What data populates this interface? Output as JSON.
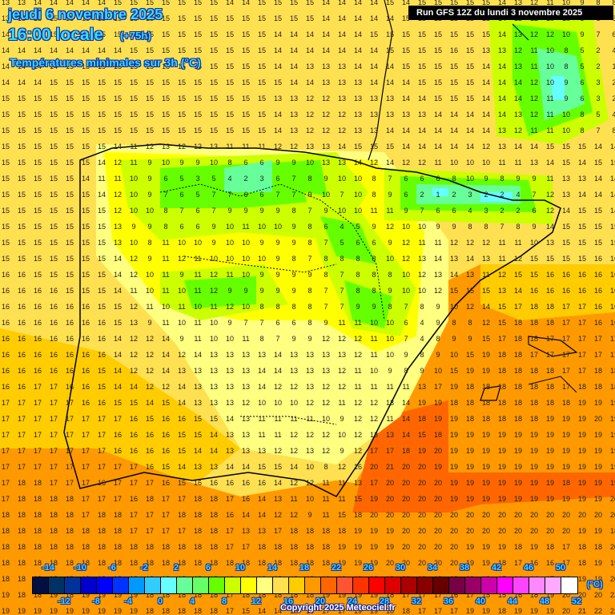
{
  "header": {
    "date": "jeudi 6 novembre 2025",
    "time": "16:00 locale",
    "lead": "(+75h)",
    "variable": "Températures minimales sur 3h (°C)",
    "run": "Run GFS 12Z du lundi 3 novembre 2025"
  },
  "footer": {
    "copyright": "Copyright 2025 Meteociel.fr",
    "unit": "(°C)"
  },
  "legend": {
    "colors": [
      "#001040",
      "#003266",
      "#003399",
      "#0000cc",
      "#0000ff",
      "#0033ff",
      "#0099ff",
      "#33ccff",
      "#66ffff",
      "#66ff99",
      "#66ff66",
      "#66ff00",
      "#ccff00",
      "#ffff00",
      "#ffff80",
      "#ffe050",
      "#ffcc00",
      "#ff9900",
      "#ff6600",
      "#ff5533",
      "#ff3300",
      "#ff0000",
      "#dd0000",
      "#aa0000",
      "#880000",
      "#660000",
      "#770044",
      "#990066",
      "#cc00aa",
      "#ff00ff",
      "#ff44ff",
      "#ff88ff",
      "#ffaaff",
      "#ffffff"
    ],
    "top_labels": [
      "-14",
      "-10",
      "-6",
      "-2",
      "2",
      "6",
      "10",
      "14",
      "18",
      "22",
      "26",
      "30",
      "34",
      "38",
      "42",
      "46",
      "50"
    ],
    "bottom_labels": [
      "-12",
      "-8",
      "-4",
      "0",
      "4",
      "8",
      "12",
      "16",
      "20",
      "24",
      "28",
      "32",
      "36",
      "40",
      "44",
      "48",
      "52"
    ]
  },
  "grid": {
    "rows": [
      "13 13 14 14 14 14 14 15 15 15 15 15 15 15 14 14 15 15 15 15 14 14 14 14 15 14 15 15 15 15 15 14 13 12 11 10 9 8 8",
      "13 15 15 15 15 15 15 15 15 15 15 15 15 15 15 15 15 15 15 15 14 14 14 14 14 15 15 15 15 15 15 14 13 12 10 10 8 6 6",
      "14 15 15 15 15 15 15 15 15 15 15 15 15 15 15 15 15 14 14 14 14 14 14 15 15 15 15 15 15 15 15 14 13 12 12 10 9 7 6",
      "14 14 14 14 14 14 14 14 15 15 15 15 15 15 15 15 15 14 14 14 14 14 14 14 15 15 15 15 16 15 13 13 12 11 10 8 5 2 4",
      "14 14 14 14 15 15 15 15 15 15 15 15 15 15 15 15 15 14 14 13 13 13 14 14 14 15 15 15 15 15 14 14 13 11 10 8 5 2 1",
      "14 14 14 15 15 15 15 15 15 15 15 15 15 15 15 15 15 15 14 14 13 13 13 14 14 14 15 15 15 15 14 14 14 12 10 9 6 3 2",
      "15 15 15 15 15 15 15 15 15 15 15 15 15 15 15 15 15 13 13 12 12 13 13 13 13 14 14 15 15 15 14 14 14 12 11 9 6 3 2",
      "15 15 15 15 15 15 15 15 15 15 15 15 15 15 15 15 15 14 13 12 12 12 13 13 13 13 13 14 14 14 14 14 13 12 11 10 8 5 4",
      "15 15 15 15 15 15 15 15 15 15 15 15 15 15 15 15 15 14 13 12 12 12 13 13 14 14 14 14 14 14 14 13 12 11 11 10 8 7 8",
      "15 15 15 15 15 15 15 14 11 12 13 12 12 13 11 11 11 12 12 13 13 14 15 15 15 14 14 14 14 14 12 13 14 14 15 15 15 14 14",
      "15 15 15 15 15 15 14 12 11 9 10 9 9 10 8 6 6 9 9 10 13 13 14 12 14 12 12 11 10 10 10 11 11 13 14 15 14 15 15",
      "15 15 15 15 15 14 11 11 10 9 6 5 3 5 4 2 3 6 7 8 9 10 10 8 7 6 6 6 8 10 9 8 9 9 11 13 13 14 14",
      "15 15 15 15 15 15 14 12 10 9 7 6 5 7 7 6 6 7 7 9 10 7 10 8 9 6 2 1 2 3 2 2 4 7 12 13 14 14 14",
      "15 15 15 15 15 15 15 12 10 10 8 7 6 7 9 9 9 9 8 7 9 10 10 11 11 9 7 6 6 4 3 2 2 6 12 14 15 15 14",
      "15 15 15 15 15 15 15 13 9 9 8 6 6 9 10 11 10 10 9 8 6 4 5 9 12 10 10 9 9 8 8 7 8 9 14 15 15 15 15",
      "15 15 15 15 15 15 15 13 10 8 11 10 10 9 10 10 9 9 9 8 7 5 6 6 9 12 11 11 12 12 12 11 11 10 13 15 15 15 15",
      "15 15 15 15 15 15 15 14 12 9 11 12 11 10 10 10 10 9 8 7 8 8 8 8 10 12 13 14 13 14 13 11 12 15 15 15 15 16 16",
      "16 16 15 15 15 15 15 14 12 10 11 9 11 12 11 10 9 9 9 9 8 7 8 8 8 10 12 13 14 13 11 12 15 15 16 16 16 16 16",
      "16 16 16 16 15 15 15 14 11 10 11 10 11 12 9 9 9 9 9 8 7 7 8 8 9 10 10 12 15 15 15 13 14 16 16 16 16 16 16",
      "16 16 16 16 16 16 15 15 12 11 10 11 10 11 12 10 8 8 8 8 7 7 9 9 8 7 8 9 10 12 14 15 17 18 18 17 17 16 16",
      "16 16 16 16 16 16 16 15 13 9 11 10 11 10 9 7 7 6 6 8 9 11 11 10 10 6 4 9 8 8 12 15 18 18 18 17 17 16 16",
      "16 16 16 16 16 16 16 14 12 12 14 9 11 10 10 11 8 7 9 9 12 12 12 11 10 7 4 8 9 9 15 17 18 18 17 17 17 17 17",
      "16 16 16 16 16 16 16 14 12 12 14 12 14 13 13 13 13 14 13 13 13 13 12 11 10 9 8 9 10 15 19 18 18 17 17 17 17 17 17",
      "16 16 16 16 16 16 15 14 12 12 14 13 13 13 13 13 14 14 13 13 13 12 11 10 9 8 9 10 15 19 19 18 18 18 18 17 17 18 18",
      "16 16 17 17 16 16 15 14 14 12 12 14 13 13 13 13 14 12 12 13 12 12 11 11 11 11 13 17 19 18 18 18 18 18 18 17 18 18 18",
      "17 17 17 17 17 16 16 15 15 14 15 14 13 13 13 12 10 10 10 12 12 11 12 12 13 14 19 19 18 18 18 18 18 18 18 18 19 19 19",
      "17 17 17 17 17 17 17 17 16 15 16 16 15 15 14 13 11 11 11 11 10 9 12 12 11 14 18 19 19 18 18 18 18 18 19 19 19 20 19",
      "17 17 17 17 17 17 17 16 16 16 16 15 15 14 13 13 11 11 12 12 12 10 12 13 13 14 15 18 19 19 19 19 19 19 19 19 19 19 19",
      "17 17 17 17 17 17 17 16 16 16 16 15 14 14 13 13 13 12 12 13 12 9 12 17 17 18 19 20 19 19 19 19 19 19 19 19 19 19 19",
      "17 17 17 17 17 17 17 17 17 16 15 14 13 13 14 14 15 15 14 10 8 12 16 20 21 20 20 19 19 19 19 19 19 19 19 19 19 19 19",
      "17 18 18 17 17 17 16 17 17 17 16 15 16 16 16 16 16 14 12 12 11 11 13 17 20 20 20 20 19 19 19 19 19 19 19 18 19 19 19",
      "17 18 18 18 18 17 17 17 16 18 17 17 18 18 17 16 14 13 11 10 11 11 15 19 20 20 20 20 19 19 19 19 19 19 19 19 19 19 20",
      "18 18 18 18 18 17 18 18 17 17 17 18 18 18 16 14 14 12 12 9 11 15 18 20 20 20 20 20 20 20 20 20 20 20 20 20 20 20 20",
      "18 18 18 18 18 18 18 18 17 17 17 17 18 18 17 13 13 17 18 18 18 18 19 19 19 20 20 20 20 20 20 20 20 20 20 20 19 19 18",
      "18 18 18 18 18 18 18 18 18 18 18 18 18 18 17 17 18 18 18 18 18 19 19 19 19 20 20 20 20 19 19 19 18 19 18 17 18 18 20",
      "18 18 18 18 18 18 18 18 18 18 18 18 18 18 18 18 18 18 18 18 18 19 19 19 20 20 20 20 20 19 19 18 17 16 16 17 18 19 19",
      "18 18 18 18 18 18 18 18 18 18 18 18 18 18 18 18 18 18 18 18 19 19 19 19 19 20 19 19 19 19 18 17 14 14 17 20 19 19 20",
      "19 18 18 19 18 19 19 19 19 18 18 18 18 18 17 18 18 18 18 18 19 19 19 19 18 17 17 17 16 17 15 15 16 18 19 20 20 20 22",
      "19 19 19 19 19 19 19 19 19 18 18 18 18 18 17 15 14 14 16 16 17 17 19 19 18 18 17 17 17 19 19 18 19 19 19 20 21 22 22"
    ]
  }
}
